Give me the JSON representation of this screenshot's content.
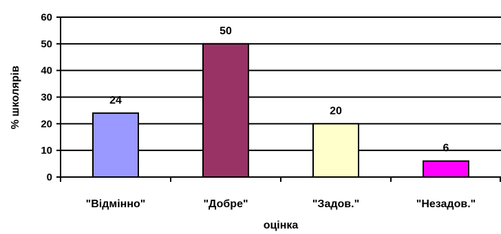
{
  "chart_data": {
    "type": "bar",
    "categories": [
      "\"Відмінно\"",
      "\"Добре\"",
      "\"Задов.\"",
      "\"Незадов.\""
    ],
    "values": [
      24,
      50,
      20,
      6
    ],
    "colors": [
      "#9999ff",
      "#993366",
      "#ffffcc",
      "#ff00ff"
    ],
    "xlabel": "оцінка",
    "ylabel": "% школярів",
    "ylim": [
      0,
      60
    ],
    "yticks": [
      0,
      10,
      20,
      30,
      40,
      50,
      60
    ],
    "grid": true,
    "legend": "none"
  }
}
